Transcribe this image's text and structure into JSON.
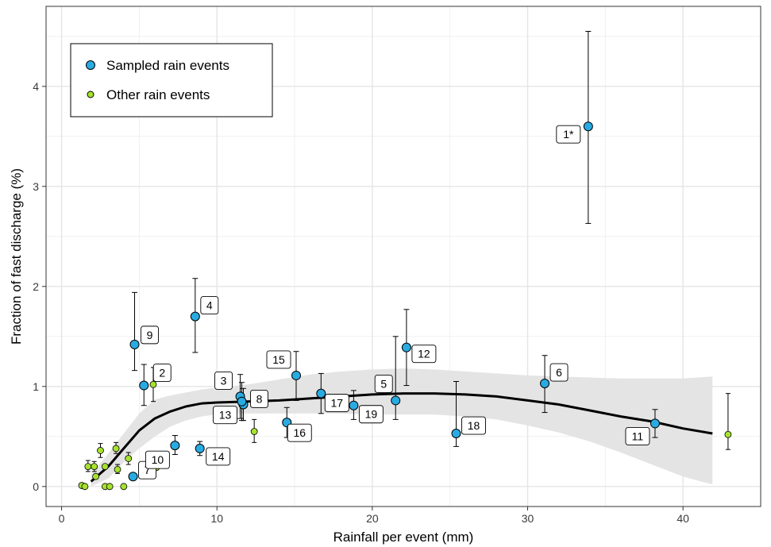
{
  "chart_data": {
    "type": "scatter",
    "title": "",
    "xlabel": "Rainfall per event (mm)",
    "ylabel": "Fraction of fast discharge (%)",
    "xlim": [
      -1,
      45
    ],
    "ylim": [
      -0.2,
      4.8
    ],
    "xticks": [
      0,
      10,
      20,
      30,
      40
    ],
    "yticks": [
      0,
      1,
      2,
      3,
      4
    ],
    "grid": true,
    "legend_position": "top-left",
    "colors": {
      "sampled": "#29ABE2",
      "other": "#A6E22E",
      "trend": "#000000",
      "band": "#E3E3E3"
    },
    "legend": [
      {
        "key": "sampled",
        "label": "Sampled rain events"
      },
      {
        "key": "other",
        "label": "Other rain events"
      }
    ],
    "sampled": [
      {
        "label": "1*",
        "x": 33.9,
        "y": 3.6,
        "ylo": 2.63,
        "yhi": 4.55
      },
      {
        "label": "2",
        "x": 5.3,
        "y": 1.01,
        "ylo": 0.81,
        "yhi": 1.22
      },
      {
        "label": "3",
        "x": 11.5,
        "y": 0.9,
        "ylo": 0.68,
        "yhi": 1.12
      },
      {
        "label": "4",
        "x": 8.6,
        "y": 1.7,
        "ylo": 1.34,
        "yhi": 2.08
      },
      {
        "label": "5",
        "x": 21.5,
        "y": 0.86,
        "ylo": 0.67,
        "yhi": 1.5
      },
      {
        "label": "6",
        "x": 31.1,
        "y": 1.03,
        "ylo": 0.74,
        "yhi": 1.31
      },
      {
        "label": "7",
        "x": 4.6,
        "y": 0.1,
        "ylo": 0.1,
        "yhi": 0.1
      },
      {
        "label": "8",
        "x": 11.7,
        "y": 0.82,
        "ylo": 0.66,
        "yhi": 0.98
      },
      {
        "label": "9",
        "x": 4.7,
        "y": 1.42,
        "ylo": 1.16,
        "yhi": 1.94
      },
      {
        "label": "10",
        "x": 7.3,
        "y": 0.41,
        "ylo": 0.32,
        "yhi": 0.51
      },
      {
        "label": "11",
        "x": 38.2,
        "y": 0.63,
        "ylo": 0.49,
        "yhi": 0.77
      },
      {
        "label": "12",
        "x": 22.2,
        "y": 1.39,
        "ylo": 1.01,
        "yhi": 1.77
      },
      {
        "label": "13",
        "x": 11.6,
        "y": 0.85,
        "ylo": 0.66,
        "yhi": 1.04
      },
      {
        "label": "14",
        "x": 8.9,
        "y": 0.38,
        "ylo": 0.31,
        "yhi": 0.45
      },
      {
        "label": "15",
        "x": 15.1,
        "y": 1.11,
        "ylo": 0.86,
        "yhi": 1.35
      },
      {
        "label": "16",
        "x": 14.5,
        "y": 0.64,
        "ylo": 0.49,
        "yhi": 0.79
      },
      {
        "label": "17",
        "x": 16.7,
        "y": 0.93,
        "ylo": 0.73,
        "yhi": 1.13
      },
      {
        "label": "18",
        "x": 25.4,
        "y": 0.53,
        "ylo": 0.4,
        "yhi": 1.05
      },
      {
        "label": "19",
        "x": 18.8,
        "y": 0.81,
        "ylo": 0.67,
        "yhi": 0.96
      }
    ],
    "other": [
      {
        "x": 1.3,
        "y": 0.01,
        "ylo": 0.01,
        "yhi": 0.01
      },
      {
        "x": 1.5,
        "y": 0.0,
        "ylo": 0.0,
        "yhi": 0.0
      },
      {
        "x": 1.7,
        "y": 0.2,
        "ylo": 0.15,
        "yhi": 0.26
      },
      {
        "x": 2.1,
        "y": 0.2,
        "ylo": 0.15,
        "yhi": 0.25
      },
      {
        "x": 2.2,
        "y": 0.1,
        "ylo": 0.1,
        "yhi": 0.1
      },
      {
        "x": 2.5,
        "y": 0.36,
        "ylo": 0.29,
        "yhi": 0.43
      },
      {
        "x": 2.8,
        "y": 0.0,
        "ylo": 0.0,
        "yhi": 0.0
      },
      {
        "x": 2.8,
        "y": 0.2,
        "ylo": 0.2,
        "yhi": 0.2
      },
      {
        "x": 3.1,
        "y": 0.0,
        "ylo": 0.0,
        "yhi": 0.0
      },
      {
        "x": 3.5,
        "y": 0.38,
        "ylo": 0.33,
        "yhi": 0.44
      },
      {
        "x": 3.6,
        "y": 0.17,
        "ylo": 0.13,
        "yhi": 0.22
      },
      {
        "x": 4.0,
        "y": 0.0,
        "ylo": 0.0,
        "yhi": 0.0
      },
      {
        "x": 4.3,
        "y": 0.28,
        "ylo": 0.22,
        "yhi": 0.34
      },
      {
        "x": 5.9,
        "y": 1.02,
        "ylo": 0.85,
        "yhi": 1.19
      },
      {
        "x": 6.1,
        "y": 0.19,
        "ylo": 0.19,
        "yhi": 0.19
      },
      {
        "x": 12.4,
        "y": 0.55,
        "ylo": 0.44,
        "yhi": 0.67
      },
      {
        "x": 42.9,
        "y": 0.52,
        "ylo": 0.37,
        "yhi": 0.93
      }
    ],
    "trend": {
      "x": [
        1.9,
        3,
        4,
        5,
        6,
        7,
        8,
        9,
        10,
        12,
        14,
        16,
        18,
        20,
        22,
        24,
        26,
        28,
        30,
        32,
        34,
        36,
        38,
        40,
        41.9
      ],
      "y": [
        0.05,
        0.2,
        0.38,
        0.56,
        0.68,
        0.75,
        0.8,
        0.83,
        0.84,
        0.85,
        0.86,
        0.88,
        0.9,
        0.92,
        0.93,
        0.93,
        0.92,
        0.9,
        0.86,
        0.82,
        0.76,
        0.7,
        0.65,
        0.58,
        0.53
      ],
      "lower": [
        0.0,
        0.08,
        0.24,
        0.38,
        0.5,
        0.6,
        0.66,
        0.7,
        0.72,
        0.73,
        0.73,
        0.73,
        0.73,
        0.72,
        0.72,
        0.72,
        0.7,
        0.67,
        0.61,
        0.54,
        0.45,
        0.34,
        0.22,
        0.1,
        0.02
      ],
      "upper": [
        0.12,
        0.33,
        0.53,
        0.73,
        0.87,
        0.91,
        0.94,
        0.97,
        0.99,
        1.02,
        1.07,
        1.12,
        1.15,
        1.17,
        1.18,
        1.17,
        1.15,
        1.13,
        1.11,
        1.1,
        1.09,
        1.08,
        1.08,
        1.08,
        1.1
      ]
    }
  }
}
